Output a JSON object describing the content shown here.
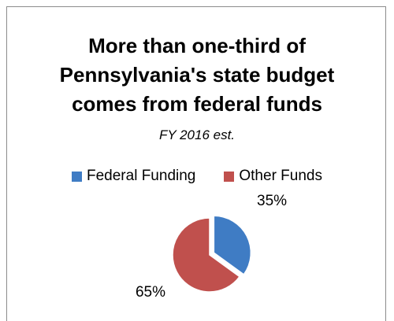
{
  "chart_data": {
    "type": "pie",
    "title_lines": [
      "More than one-third of",
      "Pennsylvania's state budget",
      "comes from federal funds"
    ],
    "subtitle": "FY 2016 est.",
    "legend_position": "top",
    "slices": [
      {
        "label": "Federal Funding",
        "value": 35,
        "display": "35%",
        "color": "#3f7cc4",
        "exploded": true
      },
      {
        "label": "Other Funds",
        "value": 65,
        "display": "65%",
        "color": "#c0504d",
        "exploded": false
      }
    ]
  }
}
